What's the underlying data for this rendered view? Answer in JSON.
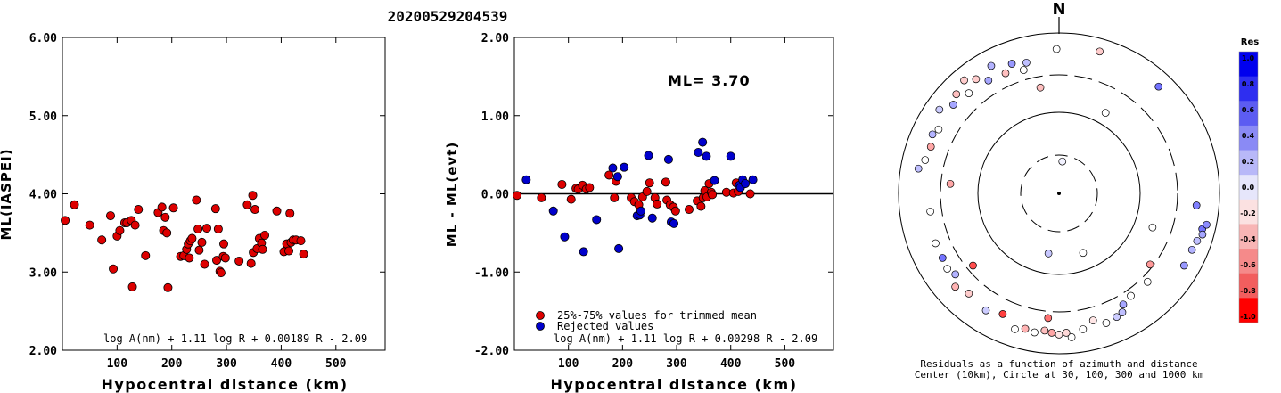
{
  "title": "20200529204539",
  "chart_data": [
    {
      "type": "scatter",
      "xlabel": "Hypocentral distance (km)",
      "ylabel": "ML(IASPEI)",
      "xlim": [
        0,
        590
      ],
      "ylim": [
        2.0,
        6.0
      ],
      "xticks": [
        "100",
        "200",
        "300",
        "400",
        "500"
      ],
      "yticks": [
        "2.00",
        "3.00",
        "4.00",
        "5.00",
        "6.00"
      ],
      "formula": "log A(nm) + 1.11 log R + 0.00189 R - 2.09",
      "series": [
        {
          "color": "#dd0000",
          "points": [
            [
              5,
              3.66
            ],
            [
              22,
              3.86
            ],
            [
              50,
              3.6
            ],
            [
              72,
              3.41
            ],
            [
              88,
              3.72
            ],
            [
              93,
              3.04
            ],
            [
              100,
              3.46
            ],
            [
              105,
              3.53
            ],
            [
              114,
              3.63
            ],
            [
              118,
              3.63
            ],
            [
              126,
              3.66
            ],
            [
              128,
              2.81
            ],
            [
              133,
              3.6
            ],
            [
              139,
              3.8
            ],
            [
              152,
              3.21
            ],
            [
              175,
              3.76
            ],
            [
              182,
              3.83
            ],
            [
              185,
              3.53
            ],
            [
              188,
              3.7
            ],
            [
              191,
              3.5
            ],
            [
              193,
              2.8
            ],
            [
              203,
              3.82
            ],
            [
              216,
              3.2
            ],
            [
              222,
              3.21
            ],
            [
              227,
              3.29
            ],
            [
              230,
              3.36
            ],
            [
              232,
              3.18
            ],
            [
              234,
              3.4
            ],
            [
              237,
              3.43
            ],
            [
              245,
              3.92
            ],
            [
              248,
              3.55
            ],
            [
              250,
              3.28
            ],
            [
              255,
              3.38
            ],
            [
              260,
              3.1
            ],
            [
              264,
              3.56
            ],
            [
              280,
              3.81
            ],
            [
              282,
              3.15
            ],
            [
              285,
              3.55
            ],
            [
              288,
              3.01
            ],
            [
              290,
              2.99
            ],
            [
              294,
              3.2
            ],
            [
              295,
              3.36
            ],
            [
              298,
              3.18
            ],
            [
              323,
              3.14
            ],
            [
              338,
              3.86
            ],
            [
              345,
              3.11
            ],
            [
              348,
              3.98
            ],
            [
              349,
              3.25
            ],
            [
              352,
              3.8
            ],
            [
              356,
              3.3
            ],
            [
              360,
              3.43
            ],
            [
              364,
              3.37
            ],
            [
              366,
              3.29
            ],
            [
              370,
              3.47
            ],
            [
              392,
              3.78
            ],
            [
              405,
              3.26
            ],
            [
              410,
              3.36
            ],
            [
              414,
              3.27
            ],
            [
              416,
              3.75
            ],
            [
              418,
              3.38
            ],
            [
              422,
              3.41
            ],
            [
              427,
              3.41
            ],
            [
              436,
              3.4
            ],
            [
              441,
              3.23
            ]
          ]
        }
      ]
    },
    {
      "type": "scatter",
      "xlabel": "Hypocentral distance (km)",
      "ylabel": "ML - ML(evt)",
      "xlim": [
        0,
        590
      ],
      "ylim": [
        -2.0,
        2.0
      ],
      "xticks": [
        "100",
        "200",
        "300",
        "400",
        "500"
      ],
      "yticks": [
        "-2.00",
        "-1.00",
        "0.00",
        "1.00",
        "2.00"
      ],
      "annotation": "ML= 3.70",
      "formula": "log A(nm) + 1.11 log R + 0.00298 R - 2.09",
      "legend": [
        "25%-75% values for trimmed mean",
        "Rejected values"
      ],
      "series": [
        {
          "name": "25%-75% values for trimmed mean",
          "color": "#dd0000",
          "points": [
            [
              5,
              -0.02
            ],
            [
              50,
              -0.05
            ],
            [
              88,
              0.12
            ],
            [
              105,
              -0.07
            ],
            [
              114,
              0.07
            ],
            [
              118,
              0.06
            ],
            [
              126,
              0.11
            ],
            [
              133,
              0.06
            ],
            [
              139,
              0.08
            ],
            [
              175,
              0.24
            ],
            [
              185,
              -0.05
            ],
            [
              188,
              0.16
            ],
            [
              216,
              -0.05
            ],
            [
              222,
              -0.1
            ],
            [
              230,
              -0.14
            ],
            [
              237,
              -0.04
            ],
            [
              245,
              0.03
            ],
            [
              250,
              0.14
            ],
            [
              260,
              -0.05
            ],
            [
              264,
              -0.13
            ],
            [
              280,
              0.15
            ],
            [
              282,
              -0.08
            ],
            [
              288,
              -0.14
            ],
            [
              294,
              -0.17
            ],
            [
              298,
              -0.22
            ],
            [
              323,
              -0.2
            ],
            [
              338,
              -0.09
            ],
            [
              345,
              -0.16
            ],
            [
              349,
              -0.05
            ],
            [
              352,
              0.04
            ],
            [
              356,
              -0.04
            ],
            [
              360,
              0.13
            ],
            [
              364,
              0.02
            ],
            [
              366,
              -0.01
            ],
            [
              392,
              0.02
            ],
            [
              405,
              0.01
            ],
            [
              410,
              0.14
            ],
            [
              414,
              0.03
            ],
            [
              436,
              0.0
            ]
          ]
        },
        {
          "name": "Rejected values",
          "color": "#0000cc",
          "points": [
            [
              22,
              0.18
            ],
            [
              72,
              -0.22
            ],
            [
              93,
              -0.55
            ],
            [
              128,
              -0.74
            ],
            [
              152,
              -0.33
            ],
            [
              182,
              0.33
            ],
            [
              191,
              0.22
            ],
            [
              193,
              -0.7
            ],
            [
              203,
              0.34
            ],
            [
              227,
              -0.28
            ],
            [
              232,
              -0.27
            ],
            [
              234,
              -0.22
            ],
            [
              248,
              0.49
            ],
            [
              255,
              -0.31
            ],
            [
              285,
              0.44
            ],
            [
              290,
              -0.36
            ],
            [
              295,
              -0.38
            ],
            [
              340,
              0.53
            ],
            [
              348,
              0.66
            ],
            [
              355,
              0.48
            ],
            [
              370,
              0.17
            ],
            [
              400,
              0.48
            ],
            [
              416,
              0.11
            ],
            [
              418,
              0.08
            ],
            [
              422,
              0.18
            ],
            [
              427,
              0.13
            ],
            [
              441,
              0.18
            ]
          ]
        }
      ]
    },
    {
      "type": "polar-scatter",
      "north_label": "N",
      "caption_line1": "Residuals as a function of azimuth and distance",
      "caption_line2": "Center (10km), Circle at 30, 100, 300 and 1000 km",
      "colorbar": {
        "title": "Res",
        "labels": [
          "1.0",
          "0.8",
          "0.6",
          "0.4",
          "0.2",
          "0.0",
          "-0.2",
          "-0.4",
          "-0.6",
          "-0.8",
          "-1.0"
        ],
        "colors": [
          "#0000ee",
          "#2e2ef0",
          "#5c5cf2",
          "#8a8af5",
          "#b8b8f8",
          "#e6e6fb",
          "#fbe1e1",
          "#f8b5b5",
          "#f58a8a",
          "#f25e5e",
          "#ff0000"
        ]
      },
      "points": [
        {
          "az": 6,
          "r": 0.2,
          "res": 0.05
        },
        {
          "az": 158,
          "r": 0.4,
          "res": 0.0
        },
        {
          "az": 190,
          "r": 0.38,
          "res": 0.22
        },
        {
          "az": 110,
          "r": 0.62,
          "res": 0.0
        },
        {
          "az": 275,
          "r": 0.68,
          "res": -0.35
        },
        {
          "az": 230,
          "r": 0.7,
          "res": -0.7
        },
        {
          "az": 185,
          "r": 0.78,
          "res": -0.55
        },
        {
          "az": 359,
          "r": 0.9,
          "res": 0.0
        },
        {
          "az": 16,
          "r": 0.92,
          "res": -0.2
        },
        {
          "az": 30,
          "r": 0.58,
          "res": 0.0
        },
        {
          "az": 43,
          "r": 0.91,
          "res": 0.55
        },
        {
          "az": 95,
          "r": 0.86,
          "res": 0.5
        },
        {
          "az": 104,
          "r": 0.92,
          "res": 0.55
        },
        {
          "az": 102,
          "r": 0.94,
          "res": 0.45
        },
        {
          "az": 106,
          "r": 0.93,
          "res": 0.35
        },
        {
          "az": 109,
          "r": 0.91,
          "res": 0.25
        },
        {
          "az": 113,
          "r": 0.9,
          "res": 0.3
        },
        {
          "az": 120,
          "r": 0.9,
          "res": 0.4
        },
        {
          "az": 128,
          "r": 0.72,
          "res": -0.4
        },
        {
          "az": 135,
          "r": 0.78,
          "res": 0.0
        },
        {
          "az": 145,
          "r": 0.78,
          "res": 0.0
        },
        {
          "az": 150,
          "r": 0.8,
          "res": 0.35
        },
        {
          "az": 152,
          "r": 0.84,
          "res": 0.25
        },
        {
          "az": 155,
          "r": 0.85,
          "res": 0.2
        },
        {
          "az": 160,
          "r": 0.86,
          "res": 0.0
        },
        {
          "az": 165,
          "r": 0.82,
          "res": -0.1
        },
        {
          "az": 170,
          "r": 0.86,
          "res": 0.0
        },
        {
          "az": 175,
          "r": 0.9,
          "res": 0.0
        },
        {
          "az": 177,
          "r": 0.87,
          "res": -0.15
        },
        {
          "az": 180,
          "r": 0.88,
          "res": -0.1
        },
        {
          "az": 183,
          "r": 0.87,
          "res": -0.35
        },
        {
          "az": 186,
          "r": 0.86,
          "res": -0.25
        },
        {
          "az": 190,
          "r": 0.88,
          "res": 0.0
        },
        {
          "az": 194,
          "r": 0.87,
          "res": -0.3
        },
        {
          "az": 198,
          "r": 0.89,
          "res": 0.0
        },
        {
          "az": 205,
          "r": 0.83,
          "res": -0.75
        },
        {
          "az": 212,
          "r": 0.86,
          "res": 0.2
        },
        {
          "az": 222,
          "r": 0.84,
          "res": -0.2
        },
        {
          "az": 228,
          "r": 0.87,
          "res": -0.3
        },
        {
          "az": 232,
          "r": 0.82,
          "res": 0.3
        },
        {
          "az": 236,
          "r": 0.84,
          "res": 0.0
        },
        {
          "az": 241,
          "r": 0.83,
          "res": 0.55
        },
        {
          "az": 248,
          "r": 0.83,
          "res": 0.0
        },
        {
          "az": 262,
          "r": 0.81,
          "res": 0.0
        },
        {
          "az": 280,
          "r": 0.89,
          "res": 0.25
        },
        {
          "az": 284,
          "r": 0.86,
          "res": 0.0
        },
        {
          "az": 290,
          "r": 0.85,
          "res": -0.35
        },
        {
          "az": 295,
          "r": 0.87,
          "res": 0.3
        },
        {
          "az": 298,
          "r": 0.85,
          "res": 0.0
        },
        {
          "az": 305,
          "r": 0.91,
          "res": 0.2
        },
        {
          "az": 310,
          "r": 0.86,
          "res": 0.35
        },
        {
          "az": 314,
          "r": 0.89,
          "res": -0.25
        },
        {
          "az": 318,
          "r": 0.84,
          "res": 0.0
        },
        {
          "az": 320,
          "r": 0.92,
          "res": -0.2
        },
        {
          "az": 324,
          "r": 0.88,
          "res": -0.2
        },
        {
          "az": 328,
          "r": 0.83,
          "res": 0.35
        },
        {
          "az": 332,
          "r": 0.9,
          "res": 0.3
        },
        {
          "az": 336,
          "r": 0.82,
          "res": -0.25
        },
        {
          "az": 340,
          "r": 0.86,
          "res": 0.4
        },
        {
          "az": 344,
          "r": 0.8,
          "res": 0.0
        },
        {
          "az": 346,
          "r": 0.84,
          "res": 0.25
        },
        {
          "az": 350,
          "r": 0.67,
          "res": -0.25
        }
      ]
    }
  ]
}
